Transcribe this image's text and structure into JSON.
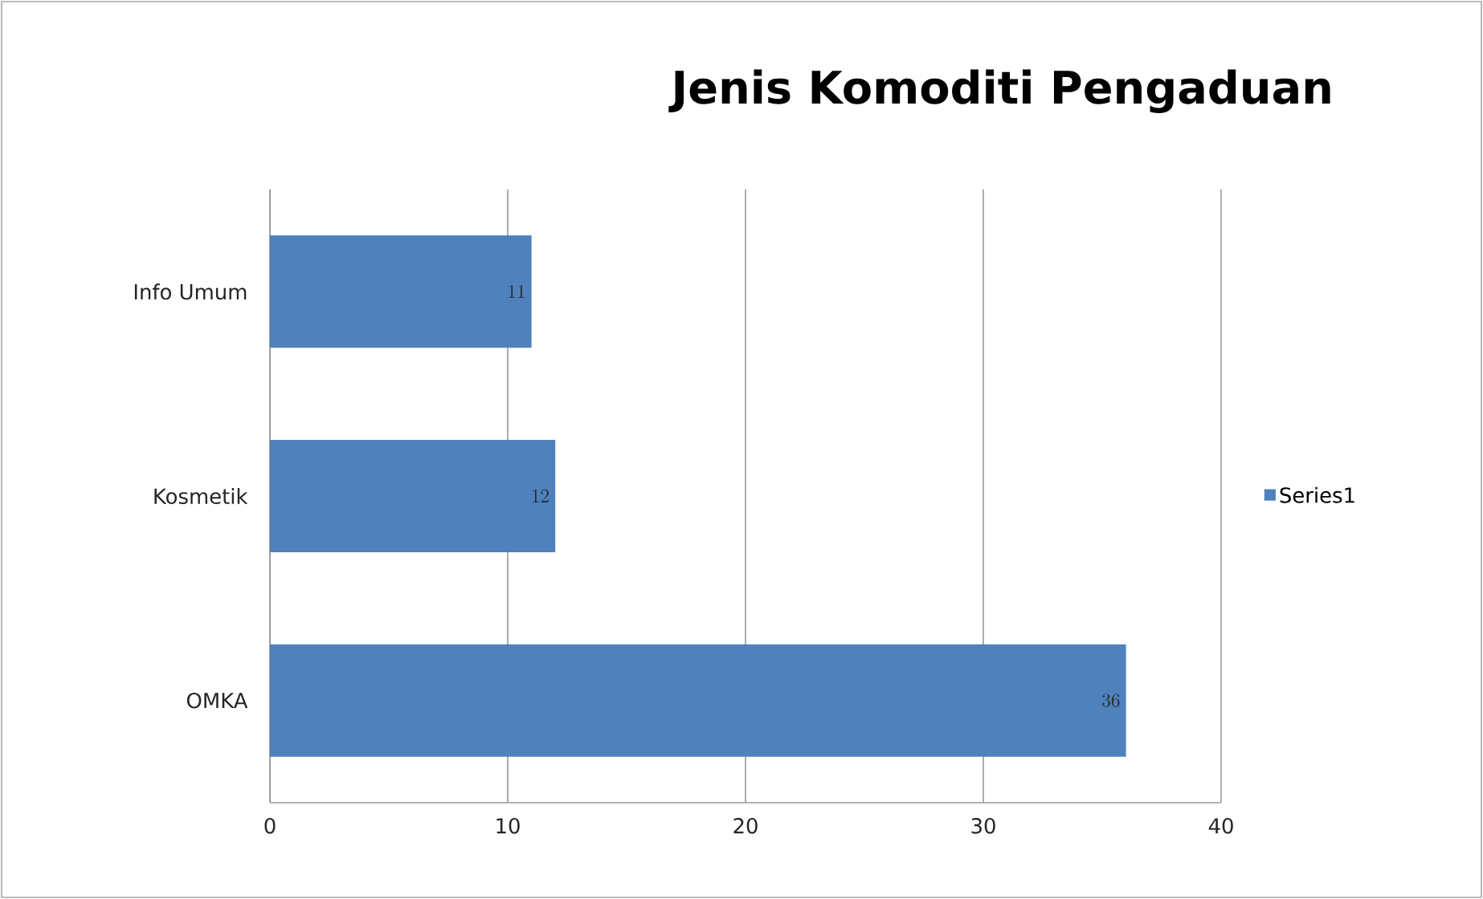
{
  "chart_data": {
    "type": "bar",
    "orientation": "horizontal",
    "title": "Jenis Komoditi Pengaduan",
    "categories": [
      "Info Umum",
      "Kosmetik",
      "OMKA"
    ],
    "series": [
      {
        "name": "Series1",
        "color": "#4f81bd",
        "values": [
          11,
          12,
          36
        ]
      }
    ],
    "xlim": [
      0,
      40
    ],
    "xticks": [
      0,
      10,
      20,
      30,
      40
    ],
    "grid": "x",
    "legend": "right",
    "data_labels": true
  }
}
